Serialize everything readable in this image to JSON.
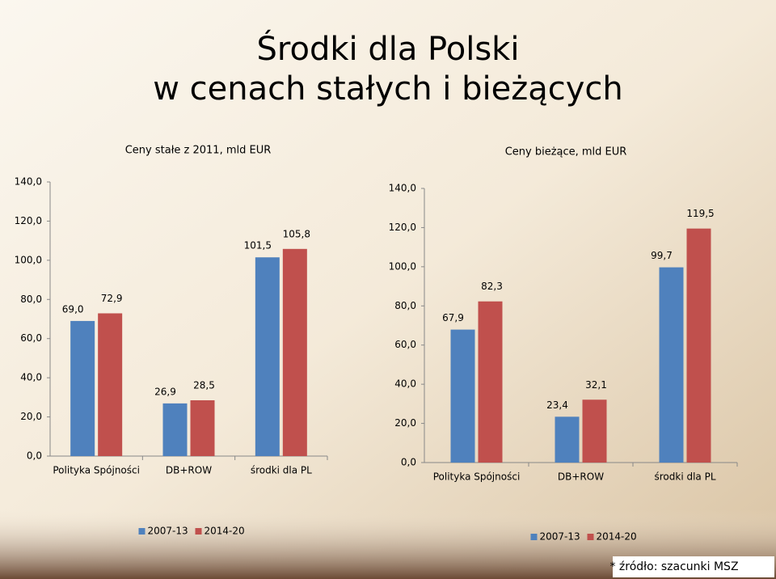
{
  "title": [
    "Środki dla Polski",
    "w cenach stałych i bieżących"
  ],
  "footnote": "* źródło: szacunki MSZ",
  "chart_data": [
    {
      "type": "bar",
      "title": "Ceny stałe z 2011, mld EUR",
      "categories": [
        "Polityka Spójności",
        "DB+ROW",
        "środki dla PL"
      ],
      "series": [
        {
          "name": "2007-13",
          "color": "#4f81bd",
          "values": [
            69.0,
            26.9,
            101.5
          ],
          "value_labels": [
            "69,0",
            "26,9",
            "101,5"
          ]
        },
        {
          "name": "2014-20",
          "color": "#c0504d",
          "values": [
            72.9,
            28.5,
            105.8
          ],
          "value_labels": [
            "72,9",
            "28,5",
            "105,8"
          ]
        }
      ],
      "ylim": [
        0,
        140
      ],
      "yticks": [
        {
          "value": 0,
          "label": "0,0"
        },
        {
          "value": 20,
          "label": "20,0"
        },
        {
          "value": 40,
          "label": "40,0"
        },
        {
          "value": 60,
          "label": "60,0"
        },
        {
          "value": 80,
          "label": "80,0"
        },
        {
          "value": 100,
          "label": "100,0"
        },
        {
          "value": 120,
          "label": "120,0"
        },
        {
          "value": 140,
          "label": "140,0"
        }
      ],
      "legend": "bottom"
    },
    {
      "type": "bar",
      "title": "Ceny bieżące, mld EUR",
      "categories": [
        "Polityka Spójności",
        "DB+ROW",
        "środki dla PL"
      ],
      "series": [
        {
          "name": "2007-13",
          "color": "#4f81bd",
          "values": [
            67.9,
            23.4,
            99.7
          ],
          "value_labels": [
            "67,9",
            "23,4",
            "99,7"
          ]
        },
        {
          "name": "2014-20",
          "color": "#c0504d",
          "values": [
            82.3,
            32.1,
            119.5
          ],
          "value_labels": [
            "82,3",
            "32,1",
            "119,5"
          ]
        }
      ],
      "ylim": [
        0,
        140
      ],
      "yticks": [
        {
          "value": 0,
          "label": "0,0"
        },
        {
          "value": 20,
          "label": "20,0"
        },
        {
          "value": 40,
          "label": "40,0"
        },
        {
          "value": 60,
          "label": "60,0"
        },
        {
          "value": 80,
          "label": "80,0"
        },
        {
          "value": 100,
          "label": "100,0"
        },
        {
          "value": 120,
          "label": "120,0"
        },
        {
          "value": 140,
          "label": "140,0"
        }
      ],
      "legend": "bottom"
    }
  ]
}
